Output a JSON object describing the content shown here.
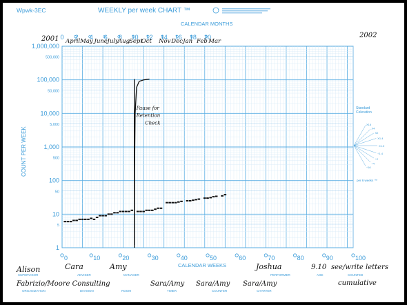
{
  "header": {
    "chart_id": "Wpwk-3EC",
    "title": "WEEKLY per week CHART ™",
    "months_axis_title": "CALENDAR MONTHS",
    "year_start": "2001",
    "year_end": "2002"
  },
  "chart_data": {
    "type": "scatter",
    "scale": "log",
    "ylabel": "COUNT PER WEEK",
    "xlabel": "CALENDAR WEEKS",
    "xlim": [
      0,
      100
    ],
    "ylim": [
      1,
      1000000
    ],
    "grid": true,
    "y_tick_labels": [
      {
        "v": 1000000,
        "label": "1,000,000",
        "major": true
      },
      {
        "v": 500000,
        "label": "500,000",
        "major": false
      },
      {
        "v": 100000,
        "label": "100,000",
        "major": true
      },
      {
        "v": 50000,
        "label": "50,000",
        "major": false
      },
      {
        "v": 10000,
        "label": "10,000",
        "major": true
      },
      {
        "v": 5000,
        "label": "5,000",
        "major": false
      },
      {
        "v": 1000,
        "label": "1,000",
        "major": true
      },
      {
        "v": 500,
        "label": "500",
        "major": false
      },
      {
        "v": 100,
        "label": "100",
        "major": true
      },
      {
        "v": 50,
        "label": "50",
        "major": false
      },
      {
        "v": 10,
        "label": "10",
        "major": true
      },
      {
        "v": 5,
        "label": "5",
        "major": false
      },
      {
        "v": 1,
        "label": "1",
        "major": true
      }
    ],
    "x_tick_labels": [
      "0",
      "10",
      "20",
      "30",
      "40",
      "50",
      "60",
      "70",
      "80",
      "90",
      "100"
    ],
    "month_tick_numbers": [
      "0",
      "2",
      "4",
      "6",
      "8",
      "10",
      "12",
      "14",
      "16",
      "18",
      "20"
    ],
    "month_names": [
      "April",
      "May",
      "June",
      "July",
      "Aug",
      "Sept",
      "Oct",
      "Nov",
      "Dec",
      "Jan",
      "Feb",
      "Mar"
    ],
    "points": [
      [
        1,
        6
      ],
      [
        2,
        6
      ],
      [
        3,
        6
      ],
      [
        4,
        6.5
      ],
      [
        5,
        6.5
      ],
      [
        6,
        7
      ],
      [
        7,
        7
      ],
      [
        8,
        7
      ],
      [
        9,
        7
      ],
      [
        10,
        7.5
      ],
      [
        11,
        7
      ],
      [
        12,
        8
      ],
      [
        13,
        9
      ],
      [
        14,
        9
      ],
      [
        15,
        9
      ],
      [
        16,
        10
      ],
      [
        17,
        10
      ],
      [
        18,
        11
      ],
      [
        19,
        11
      ],
      [
        20,
        12
      ],
      [
        21,
        12
      ],
      [
        22,
        12
      ],
      [
        23,
        12
      ],
      [
        24,
        13
      ],
      [
        26,
        12
      ],
      [
        27,
        12
      ],
      [
        28,
        12
      ],
      [
        29,
        13
      ],
      [
        30,
        13
      ],
      [
        31,
        13
      ],
      [
        32,
        14
      ],
      [
        33,
        15
      ],
      [
        34,
        15
      ],
      [
        36,
        22
      ],
      [
        37,
        22
      ],
      [
        38,
        22
      ],
      [
        39,
        22
      ],
      [
        40,
        23
      ],
      [
        41,
        24
      ],
      [
        43,
        25
      ],
      [
        44,
        25
      ],
      [
        45,
        26
      ],
      [
        46,
        27
      ],
      [
        47,
        28
      ],
      [
        49,
        30
      ],
      [
        50,
        30
      ],
      [
        51,
        31
      ],
      [
        52,
        33
      ],
      [
        53,
        34
      ],
      [
        55,
        35
      ],
      [
        56,
        38
      ]
    ],
    "phase_line_week": 24.8,
    "celeration_curve": [
      [
        24.8,
        1
      ],
      [
        24.9,
        200
      ],
      [
        25.1,
        10000
      ],
      [
        25.6,
        60000
      ],
      [
        26.5,
        90000
      ],
      [
        28,
        100000
      ],
      [
        30,
        105000
      ]
    ],
    "annotations": [
      {
        "text": "Pause for",
        "week": 25.5,
        "value": 13000
      },
      {
        "text": "Retention",
        "week": 25.5,
        "value": 7800
      },
      {
        "text": "Check",
        "week": 28.5,
        "value": 4600
      }
    ]
  },
  "celeration_fan": {
    "title": "Standard",
    "title2": "Celeration",
    "labels": [
      "X16",
      "X4",
      "X2",
      "X1.4",
      "X1.0",
      "÷1.4",
      "÷2",
      "÷4",
      "÷16"
    ],
    "footer": "per 6 weeks ™"
  },
  "footer": {
    "supervisor": "Alison",
    "adviser": "Cara",
    "manager": "Amy",
    "performer": "Joshua",
    "age": "9.10",
    "counted": "see/write letters",
    "organization": "Fabrizio/Moore Consulting",
    "timer": "Sara/Amy",
    "counter": "Sara/Amy",
    "charter": "Sara/Amy",
    "counted2": "cumulative",
    "field_labels": {
      "supervisor": "SUPERVISOR",
      "adviser": "ADVISER",
      "manager": "MANAGER",
      "performer": "PERFORMER",
      "age": "AGE",
      "counted": "COUNTED",
      "organization": "ORGANIZATION",
      "division": "DIVISION",
      "room": "ROOM",
      "timer": "TIMER",
      "counter": "COUNTER",
      "charter": "CHARTER"
    }
  }
}
